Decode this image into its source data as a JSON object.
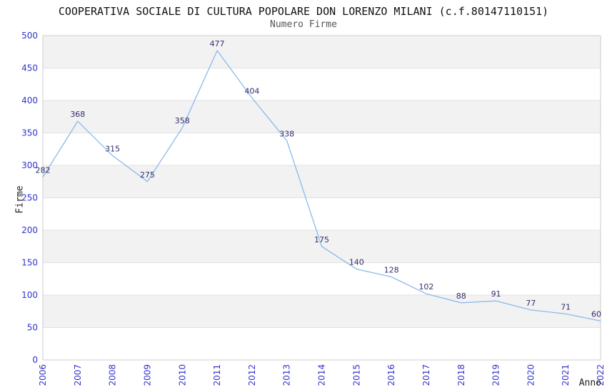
{
  "chart_data": {
    "type": "line",
    "title": "COOPERATIVA SOCIALE DI CULTURA POPOLARE DON LORENZO MILANI (c.f.80147110151)",
    "subtitle": "Numero Firme",
    "xlabel": "Anno",
    "ylabel": "Firme",
    "categories": [
      "2006",
      "2007",
      "2008",
      "2009",
      "2010",
      "2011",
      "2012",
      "2013",
      "2014",
      "2015",
      "2016",
      "2017",
      "2018",
      "2019",
      "2020",
      "2021",
      "2022"
    ],
    "values": [
      282,
      368,
      315,
      275,
      358,
      477,
      404,
      338,
      175,
      140,
      128,
      102,
      88,
      91,
      77,
      71,
      60
    ],
    "ylim": [
      0,
      500
    ],
    "ytick_interval": 50,
    "grid": "horizontal",
    "alternating_bands": true,
    "legend_position": "none",
    "data_labels_visible": true,
    "colors": {
      "line": "#8cb9eb",
      "data_label": "#30306e",
      "axis_tick_label": "#3333cc",
      "band_fill": "#f2f2f2",
      "gridline": "#e2e2e2",
      "axis_border": "#cccccc",
      "title": "#111111",
      "subtitle": "#555555",
      "axis_title": "#222222"
    }
  }
}
